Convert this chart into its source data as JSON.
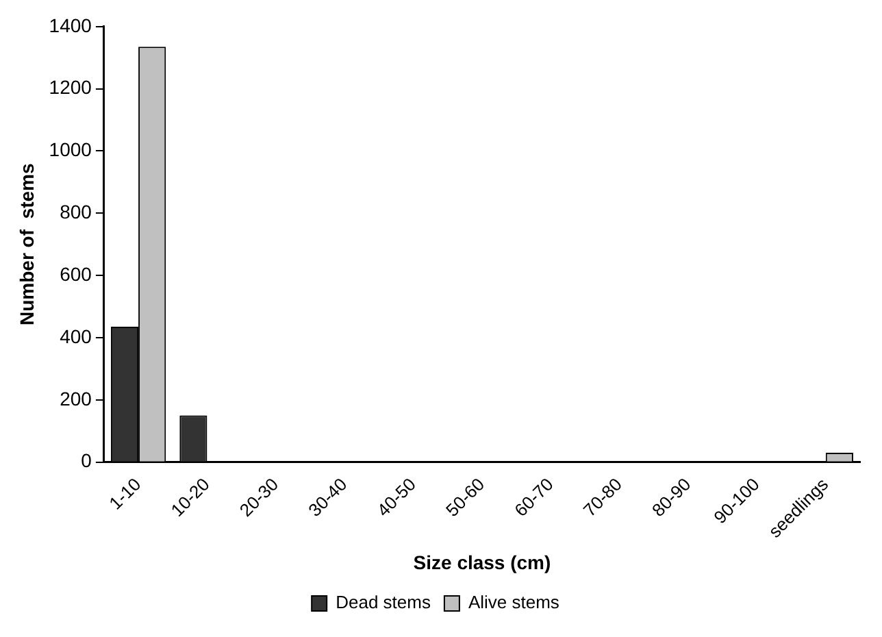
{
  "chart_data": {
    "type": "bar",
    "xlabel": "Size class (cm)",
    "ylabel": "Number of  stems",
    "categories": [
      "1-10",
      "10-20",
      "20-30",
      "30-40",
      "40-50",
      "50-60",
      "60-70",
      "70-80",
      "80-90",
      "90-100",
      "seedlings"
    ],
    "series": [
      {
        "name": "Dead stems",
        "color": "#333333",
        "values": [
          435,
          150,
          0,
          0,
          0,
          0,
          0,
          0,
          0,
          0,
          0
        ]
      },
      {
        "name": "Alive stems",
        "color": "#c0c0c0",
        "values": [
          1335,
          0,
          0,
          0,
          0,
          0,
          0,
          0,
          0,
          0,
          30
        ]
      }
    ],
    "ylim": [
      0,
      1400
    ],
    "yticks": [
      0,
      200,
      400,
      600,
      800,
      1000,
      1200,
      1400
    ],
    "grid": false,
    "legend": "bottom"
  }
}
